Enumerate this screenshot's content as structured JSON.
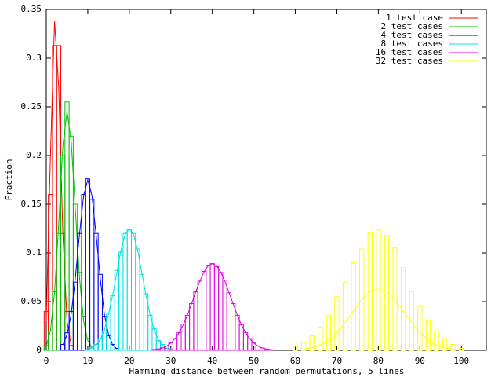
{
  "chart_data": {
    "type": "histogram-line",
    "x_label": "Hamming distance between random permutations, 5 lines",
    "y_label": "Fraction",
    "xlim": [
      0,
      106
    ],
    "ylim": [
      0,
      0.35
    ],
    "xticks": [
      0,
      10,
      20,
      30,
      40,
      50,
      60,
      70,
      80,
      90,
      100
    ],
    "yticks": [
      0,
      0.05,
      0.1,
      0.15,
      0.2,
      0.25,
      0.3,
      0.35
    ],
    "legend": "top-right",
    "series": [
      {
        "name": "1 test case",
        "color": "#ff0000",
        "x": [
          0,
          1,
          2,
          3,
          4,
          5,
          6
        ],
        "values": [
          0.04,
          0.16,
          0.313,
          0.313,
          0.12,
          0.04,
          0.005
        ],
        "expected": [
          0.03,
          0.2,
          0.338,
          0.27,
          0.12,
          0.03,
          0.005
        ]
      },
      {
        "name": "2 test cases",
        "color": "#00c000",
        "x": [
          0,
          1,
          2,
          3,
          4,
          5,
          6,
          7,
          8,
          9,
          10,
          11
        ],
        "values": [
          0.005,
          0.02,
          0.06,
          0.12,
          0.2,
          0.255,
          0.22,
          0.15,
          0.08,
          0.035,
          0.012,
          0.003
        ],
        "expected": [
          0.004,
          0.02,
          0.06,
          0.13,
          0.21,
          0.245,
          0.215,
          0.145,
          0.075,
          0.03,
          0.01,
          0.003
        ]
      },
      {
        "name": "4 test cases",
        "color": "#0000ff",
        "x": [
          4,
          5,
          6,
          7,
          8,
          9,
          10,
          11,
          12,
          13,
          14,
          15,
          16,
          17
        ],
        "values": [
          0.006,
          0.018,
          0.04,
          0.07,
          0.12,
          0.16,
          0.176,
          0.155,
          0.12,
          0.078,
          0.035,
          0.015,
          0.006,
          0.002
        ],
        "expected": [
          0.0055,
          0.016,
          0.037,
          0.074,
          0.119,
          0.159,
          0.175,
          0.159,
          0.119,
          0.074,
          0.037,
          0.016,
          0.0055,
          0.0015
        ]
      },
      {
        "name": "8 test cases",
        "color": "#00e0e0",
        "x": [
          10,
          11,
          12,
          13,
          14,
          15,
          16,
          17,
          18,
          19,
          20,
          21,
          22,
          23,
          24,
          25,
          26,
          27,
          28,
          29,
          30
        ],
        "values": [
          0.001,
          0.003,
          0.006,
          0.012,
          0.02,
          0.038,
          0.056,
          0.082,
          0.101,
          0.12,
          0.124,
          0.12,
          0.104,
          0.078,
          0.058,
          0.036,
          0.022,
          0.01,
          0.006,
          0.002,
          0.001
        ],
        "expected": [
          0.0009,
          0.0024,
          0.0054,
          0.011,
          0.021,
          0.037,
          0.057,
          0.08,
          0.103,
          0.119,
          0.125,
          0.119,
          0.103,
          0.08,
          0.057,
          0.037,
          0.021,
          0.011,
          0.0054,
          0.0024,
          0.0009
        ]
      },
      {
        "name": "16 test cases",
        "color": "#e000e0",
        "x": [
          26,
          27,
          28,
          29,
          30,
          31,
          32,
          33,
          34,
          35,
          36,
          37,
          38,
          39,
          40,
          41,
          42,
          43,
          44,
          45,
          46,
          47,
          48,
          49,
          50,
          51,
          52,
          53,
          54
        ],
        "values": [
          0.0008,
          0.0014,
          0.0026,
          0.0045,
          0.0076,
          0.012,
          0.018,
          0.027,
          0.036,
          0.048,
          0.06,
          0.071,
          0.081,
          0.087,
          0.089,
          0.086,
          0.08,
          0.072,
          0.059,
          0.048,
          0.036,
          0.026,
          0.018,
          0.012,
          0.0075,
          0.0045,
          0.0025,
          0.0013,
          0.0007
        ],
        "expected": [
          0.0007,
          0.0013,
          0.0025,
          0.0044,
          0.0074,
          0.0119,
          0.0181,
          0.0263,
          0.0363,
          0.0478,
          0.0598,
          0.0711,
          0.0805,
          0.0868,
          0.089,
          0.0868,
          0.0805,
          0.0711,
          0.0598,
          0.0478,
          0.0363,
          0.0263,
          0.0181,
          0.0119,
          0.0074,
          0.0044,
          0.0025,
          0.0013,
          0.0007
        ]
      },
      {
        "name": "32 test cases",
        "color": "#ffff00",
        "x": [
          60,
          61,
          62,
          63,
          64,
          65,
          66,
          67,
          68,
          69,
          70,
          71,
          72,
          73,
          74,
          75,
          76,
          77,
          78,
          79,
          80,
          81,
          82,
          83,
          84,
          85,
          86,
          87,
          88,
          89,
          90,
          91,
          92,
          93,
          94,
          95,
          96,
          97,
          98,
          99,
          100
        ],
        "values": [
          0.004,
          0,
          0.008,
          0,
          0.015,
          0,
          0.024,
          0,
          0.036,
          0,
          0.055,
          0,
          0.07,
          0,
          0.09,
          0,
          0.104,
          0,
          0.121,
          0,
          0.124,
          0,
          0.118,
          0,
          0.105,
          0,
          0.085,
          0,
          0.06,
          0,
          0.045,
          0,
          0.03,
          0,
          0.02,
          0,
          0.012,
          0,
          0.006,
          0,
          0.002
        ],
        "expected": [
          0.0004,
          0.0007,
          0.0011,
          0.0017,
          0.0026,
          0.0038,
          0.0055,
          0.0077,
          0.0105,
          0.0139,
          0.0181,
          0.0229,
          0.0284,
          0.0342,
          0.0402,
          0.0461,
          0.0516,
          0.0563,
          0.0599,
          0.0622,
          0.063,
          0.0622,
          0.0599,
          0.0563,
          0.0516,
          0.0461,
          0.0402,
          0.0342,
          0.0284,
          0.0229,
          0.0181,
          0.0139,
          0.0105,
          0.0077,
          0.0055,
          0.0038,
          0.0026,
          0.0017,
          0.0011,
          0.0007,
          0.0004
        ]
      }
    ]
  }
}
